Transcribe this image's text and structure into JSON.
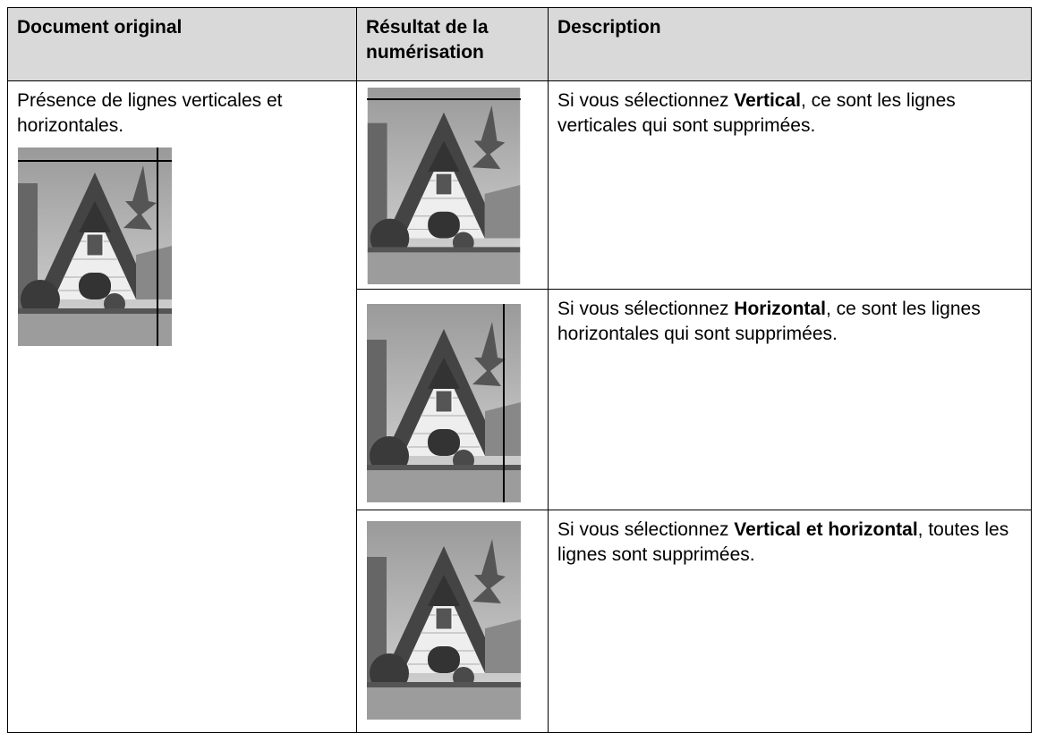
{
  "table": {
    "headers": [
      "Document original",
      "Résultat de la numérisation",
      "Description"
    ],
    "original": "Présence de lignes verticales et horizontales.",
    "rows": [
      {
        "before": "Si vous sélectionnez ",
        "bold": "Vertical",
        "after": ", ce sont les lignes verticales qui sont supprimées."
      },
      {
        "before": "Si vous sélectionnez ",
        "bold": "Horizontal",
        "after": ", ce sont les lignes horizontales qui sont supprimées."
      },
      {
        "before": "Si vous sélectionnez ",
        "bold": "Vertical et horizontal",
        "after": ", toutes les lignes sont supprimées."
      }
    ]
  }
}
